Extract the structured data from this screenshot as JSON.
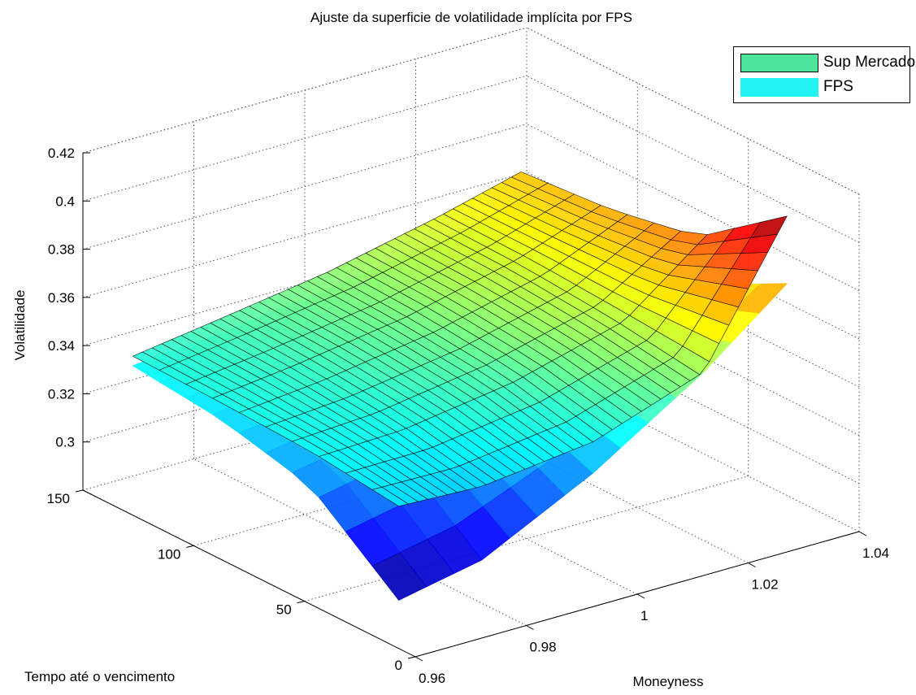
{
  "chart_data": {
    "type": "surface3d",
    "title": "Ajuste da superficie de volatilidade implícita por FPS",
    "xlabel": "Moneyness",
    "ylabel": "Tempo até o vencimento",
    "zlabel": "Volatilidade",
    "xlim": [
      0.96,
      1.04
    ],
    "ylim": [
      0,
      150
    ],
    "zlim": [
      0.28,
      0.42
    ],
    "x_ticks": [
      "0.96",
      "0.98",
      "1",
      "1.02",
      "1.04"
    ],
    "y_ticks": [
      "0",
      "50",
      "100",
      "150"
    ],
    "z_ticks": [
      "0.3",
      "0.32",
      "0.34",
      "0.36",
      "0.38",
      "0.4",
      "0.42"
    ],
    "grid": true,
    "legend": {
      "position": "top-right",
      "entries": [
        "Sup Mercado",
        "FPS"
      ]
    },
    "series": [
      {
        "name": "Sup Mercado",
        "colormap": "jet",
        "edge_color": "#000000",
        "x_grid": [
          0.965,
          0.98,
          1.0,
          1.02,
          1.035
        ],
        "y_grid": [
          20,
          60,
          100,
          140
        ],
        "z": [
          [
            0.33,
            0.3285,
            0.334,
            0.35,
            0.405
          ],
          [
            0.3345,
            0.336,
            0.343,
            0.355,
            0.378
          ],
          [
            0.336,
            0.34,
            0.347,
            0.358,
            0.371
          ],
          [
            0.337,
            0.342,
            0.349,
            0.359,
            0.368
          ]
        ]
      },
      {
        "name": "FPS",
        "colormap": "jet",
        "edge_color": "none",
        "x_grid": [
          0.965,
          0.98,
          1.0,
          1.02,
          1.035
        ],
        "y_grid": [
          20,
          60,
          100,
          140
        ],
        "z": [
          [
            0.291,
            0.298,
            0.321,
            0.35,
            0.377
          ],
          [
            0.32,
            0.327,
            0.336,
            0.346,
            0.358
          ],
          [
            0.329,
            0.333,
            0.34,
            0.348,
            0.357
          ],
          [
            0.333,
            0.336,
            0.342,
            0.349,
            0.356
          ]
        ]
      }
    ]
  }
}
